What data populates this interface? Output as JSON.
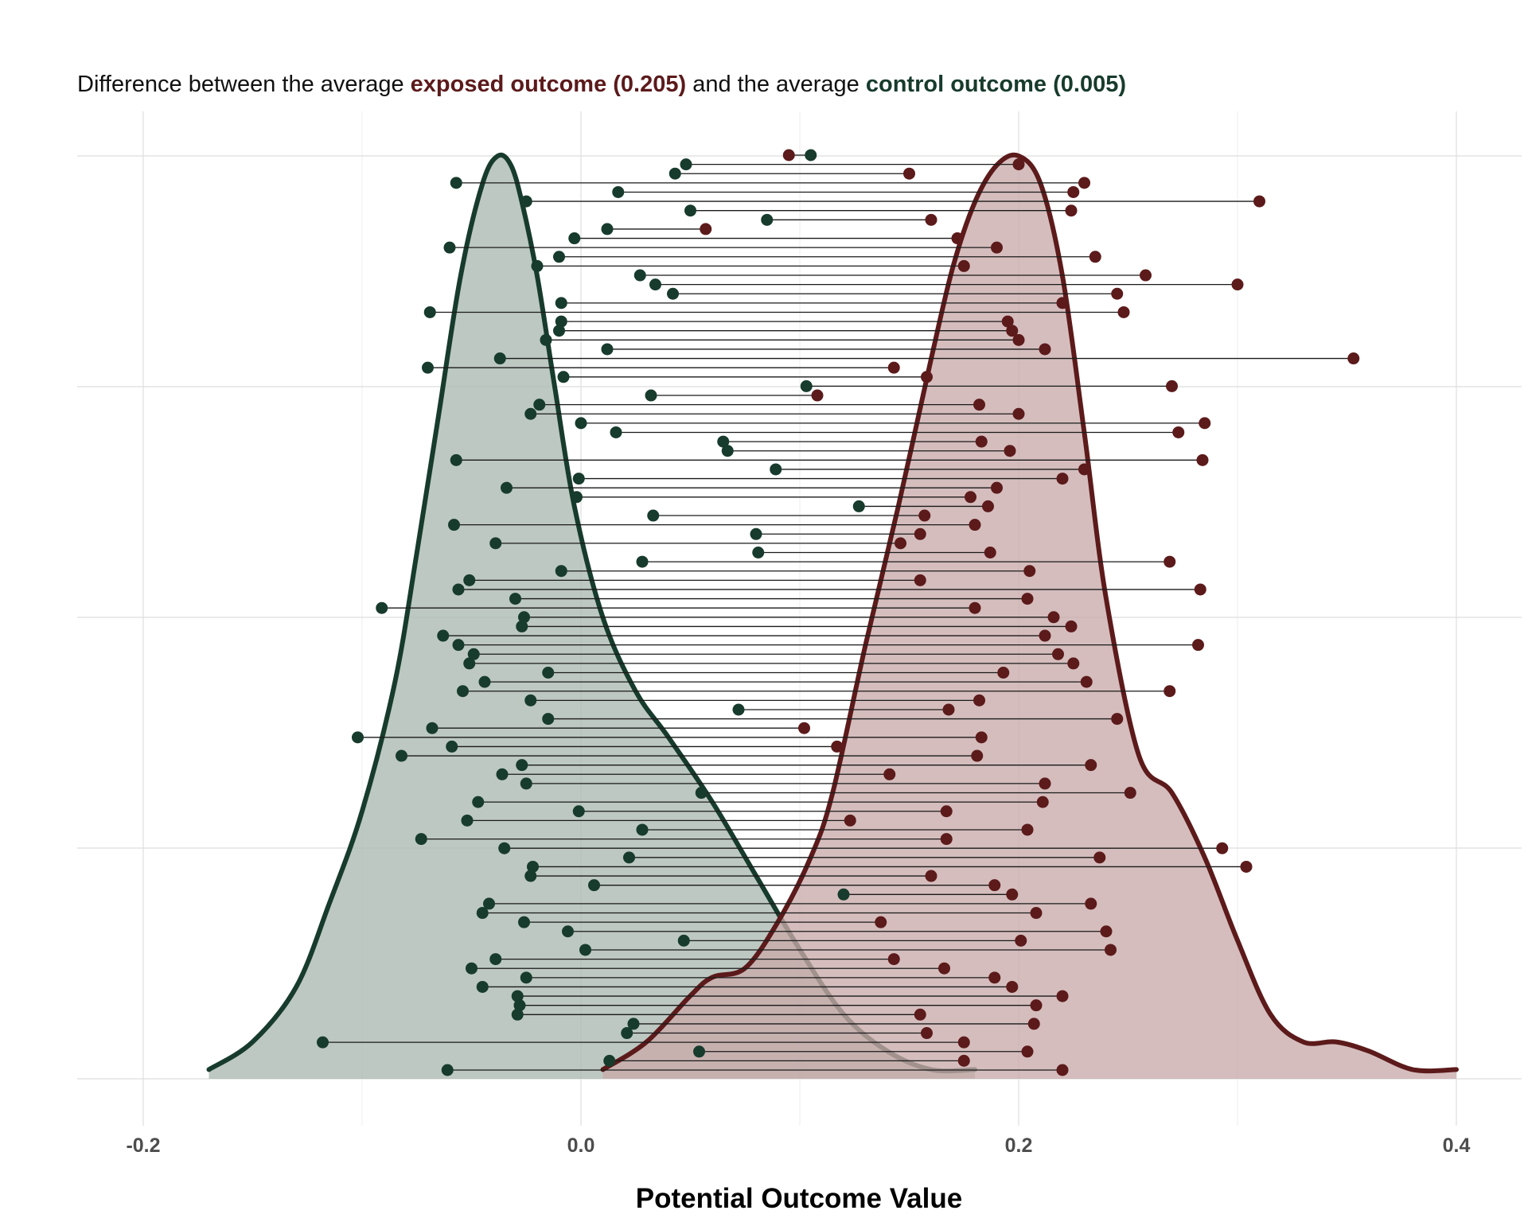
{
  "subtitle": {
    "prefix": "Difference between the average ",
    "exposed": "exposed outcome (0.205)",
    "middle": " and the average ",
    "control": "control outcome (0.005)"
  },
  "colors": {
    "exposed": "#5c1a1b",
    "exposed_fill": "#c9abab",
    "control": "#173b2c",
    "control_fill": "#a9b8b0",
    "grid": "#dedede",
    "segment": "#1a1a1a"
  },
  "chart_data": {
    "type": "scatter",
    "chart_subtype": "dumbbell with density overlay",
    "title": "",
    "xlabel": "Potential Outcome Value",
    "ylabel": "",
    "xlim": [
      -0.2,
      0.4
    ],
    "x_ticks": [
      "-0.2",
      "0.0",
      "0.2",
      "0.4"
    ],
    "grid": true,
    "legend": "none",
    "series": [
      {
        "name": "control outcome",
        "mean": 0.005
      },
      {
        "name": "exposed outcome",
        "mean": 0.205
      }
    ],
    "pairs": [
      [
        0.105,
        0.095
      ],
      [
        0.048,
        0.2
      ],
      [
        0.043,
        0.15
      ],
      [
        -0.057,
        0.23
      ],
      [
        0.017,
        0.225
      ],
      [
        -0.025,
        0.31
      ],
      [
        0.05,
        0.224
      ],
      [
        0.085,
        0.16
      ],
      [
        0.012,
        0.057
      ],
      [
        -0.003,
        0.172
      ],
      [
        -0.06,
        0.19
      ],
      [
        -0.01,
        0.235
      ],
      [
        -0.02,
        0.175
      ],
      [
        0.027,
        0.258
      ],
      [
        0.034,
        0.3
      ],
      [
        0.042,
        0.245
      ],
      [
        -0.009,
        0.22
      ],
      [
        -0.069,
        0.248
      ],
      [
        -0.009,
        0.195
      ],
      [
        -0.01,
        0.197
      ],
      [
        -0.016,
        0.2
      ],
      [
        0.012,
        0.212
      ],
      [
        -0.037,
        0.353
      ],
      [
        -0.07,
        0.143
      ],
      [
        -0.008,
        0.158
      ],
      [
        0.103,
        0.27
      ],
      [
        0.032,
        0.108
      ],
      [
        -0.019,
        0.182
      ],
      [
        -0.023,
        0.2
      ],
      [
        0.0,
        0.285
      ],
      [
        0.016,
        0.273
      ],
      [
        0.065,
        0.183
      ],
      [
        0.067,
        0.196
      ],
      [
        -0.057,
        0.284
      ],
      [
        0.089,
        0.23
      ],
      [
        -0.001,
        0.22
      ],
      [
        -0.034,
        0.19
      ],
      [
        -0.002,
        0.178
      ],
      [
        0.127,
        0.186
      ],
      [
        0.033,
        0.157
      ],
      [
        -0.058,
        0.18
      ],
      [
        0.08,
        0.155
      ],
      [
        -0.039,
        0.146
      ],
      [
        0.081,
        0.187
      ],
      [
        0.028,
        0.269
      ],
      [
        -0.009,
        0.205
      ],
      [
        -0.051,
        0.155
      ],
      [
        -0.056,
        0.283
      ],
      [
        -0.03,
        0.204
      ],
      [
        -0.091,
        0.18
      ],
      [
        -0.026,
        0.216
      ],
      [
        -0.027,
        0.224
      ],
      [
        -0.063,
        0.212
      ],
      [
        -0.056,
        0.282
      ],
      [
        -0.049,
        0.218
      ],
      [
        -0.051,
        0.225
      ],
      [
        -0.015,
        0.193
      ],
      [
        -0.044,
        0.231
      ],
      [
        -0.054,
        0.269
      ],
      [
        -0.023,
        0.182
      ],
      [
        0.072,
        0.168
      ],
      [
        -0.015,
        0.245
      ],
      [
        -0.068,
        0.102
      ],
      [
        -0.102,
        0.183
      ],
      [
        -0.059,
        0.117
      ],
      [
        -0.082,
        0.181
      ],
      [
        -0.027,
        0.233
      ],
      [
        -0.036,
        0.141
      ],
      [
        -0.025,
        0.212
      ],
      [
        0.055,
        0.251
      ],
      [
        -0.047,
        0.211
      ],
      [
        -0.001,
        0.167
      ],
      [
        -0.052,
        0.123
      ],
      [
        0.028,
        0.204
      ],
      [
        -0.073,
        0.167
      ],
      [
        -0.035,
        0.293
      ],
      [
        0.022,
        0.237
      ],
      [
        -0.022,
        0.304
      ],
      [
        -0.023,
        0.16
      ],
      [
        0.006,
        0.189
      ],
      [
        0.12,
        0.197
      ],
      [
        -0.042,
        0.233
      ],
      [
        -0.045,
        0.208
      ],
      [
        -0.026,
        0.137
      ],
      [
        -0.006,
        0.24
      ],
      [
        0.047,
        0.201
      ],
      [
        0.002,
        0.242
      ],
      [
        -0.039,
        0.143
      ],
      [
        -0.05,
        0.166
      ],
      [
        -0.025,
        0.189
      ],
      [
        -0.045,
        0.197
      ],
      [
        -0.029,
        0.22
      ],
      [
        -0.028,
        0.208
      ],
      [
        -0.029,
        0.155
      ],
      [
        0.024,
        0.207
      ],
      [
        0.021,
        0.158
      ],
      [
        -0.118,
        0.175
      ],
      [
        0.054,
        0.204
      ],
      [
        0.013,
        0.175
      ],
      [
        -0.061,
        0.22
      ]
    ],
    "density_control": {
      "x": [
        -0.17,
        -0.15,
        -0.13,
        -0.115,
        -0.1,
        -0.085,
        -0.075,
        -0.065,
        -0.055,
        -0.045,
        -0.038,
        -0.032,
        -0.027,
        -0.02,
        -0.012,
        -0.003,
        0.01,
        0.025,
        0.04,
        0.06,
        0.08,
        0.1,
        0.12,
        0.14,
        0.16,
        0.18
      ],
      "y": [
        0.01,
        0.04,
        0.1,
        0.19,
        0.29,
        0.43,
        0.57,
        0.72,
        0.87,
        0.97,
        1.0,
        0.99,
        0.95,
        0.87,
        0.75,
        0.62,
        0.5,
        0.42,
        0.37,
        0.3,
        0.22,
        0.14,
        0.07,
        0.03,
        0.01,
        0.01
      ]
    },
    "density_exposed": {
      "x": [
        0.01,
        0.03,
        0.05,
        0.06,
        0.075,
        0.09,
        0.105,
        0.115,
        0.13,
        0.145,
        0.16,
        0.17,
        0.18,
        0.19,
        0.2,
        0.21,
        0.22,
        0.23,
        0.24,
        0.255,
        0.27,
        0.285,
        0.3,
        0.315,
        0.33,
        0.345,
        0.36,
        0.38,
        0.4
      ],
      "y": [
        0.01,
        0.04,
        0.09,
        0.11,
        0.12,
        0.17,
        0.24,
        0.31,
        0.47,
        0.62,
        0.78,
        0.88,
        0.95,
        0.99,
        1.0,
        0.97,
        0.87,
        0.7,
        0.52,
        0.35,
        0.31,
        0.24,
        0.15,
        0.07,
        0.04,
        0.04,
        0.03,
        0.01,
        0.01
      ]
    }
  }
}
